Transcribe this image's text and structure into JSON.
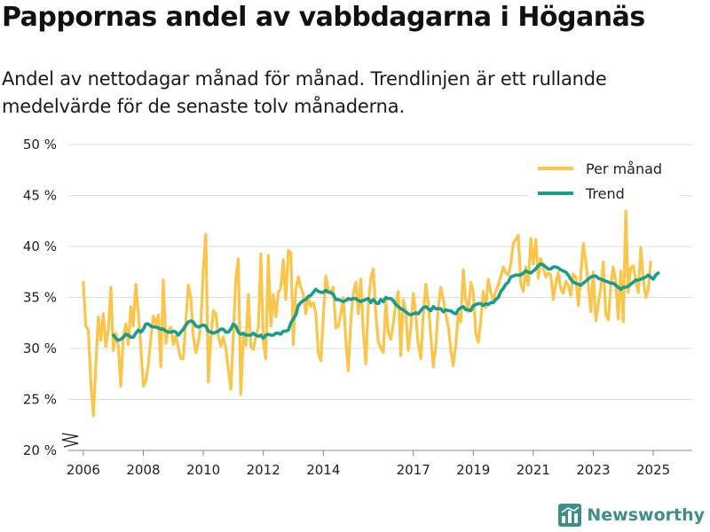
{
  "title": "Pappornas andel av vabbdagarna i Höganäs",
  "subtitle": "Andel av nettodagar månad för månad. Trendlinjen är ett rullande medelvärde för de senaste tolv månaderna.",
  "brand": "Newsworthy",
  "colors": {
    "monthly": "#fbc54a",
    "trend": "#179c8e",
    "grid": "#dddddd",
    "brand": "#3d8f88"
  },
  "chart_data": {
    "type": "line",
    "x_tick_labels": [
      "2006",
      "2008",
      "2010",
      "2012",
      "2014",
      "2017",
      "2019",
      "2021",
      "2023",
      "2025"
    ],
    "y_tick_labels": [
      "20 %",
      "25 %",
      "30 %",
      "35 %",
      "40 %",
      "45 %",
      "50 %"
    ],
    "y_ticks": [
      20,
      25,
      30,
      35,
      40,
      45,
      50
    ],
    "ylim": [
      20,
      50
    ],
    "legend": {
      "placement": "top-right",
      "labels": [
        "Per månad",
        "Trend"
      ]
    },
    "series": [
      {
        "name": "Per månad",
        "start": "2006-01",
        "values": [
          36.5,
          32.2,
          31.8,
          26.8,
          23.4,
          28.5,
          33.1,
          30.8,
          33.4,
          30.2,
          31.8,
          36.0,
          29.8,
          31.5,
          30.2,
          26.3,
          31.2,
          32.4,
          30.4,
          34.1,
          32.2,
          36.3,
          33.4,
          30.1,
          26.3,
          26.8,
          28.4,
          31.0,
          33.2,
          32.4,
          33.3,
          28.2,
          36.7,
          30.5,
          31.8,
          32.1,
          30.4,
          31.2,
          30.1,
          29.0,
          29.0,
          32.7,
          36.2,
          35.0,
          31.2,
          29.6,
          30.6,
          32.4,
          37.8,
          41.2,
          26.7,
          31.0,
          33.7,
          33.4,
          31.2,
          30.2,
          31.1,
          30.1,
          27.9,
          26.0,
          31.3,
          36.8,
          38.8,
          25.5,
          31.2,
          30.3,
          35.3,
          30.2,
          29.9,
          31.1,
          32.1,
          39.3,
          30.7,
          29.0,
          39.1,
          32.2,
          35.3,
          33.1,
          35.5,
          35.9,
          38.7,
          34.8,
          39.6,
          39.4,
          30.4,
          35.8,
          37.0,
          36.0,
          35.3,
          33.4,
          35.2,
          34.1,
          34.5,
          33.5,
          29.6,
          28.8,
          33.2,
          37.1,
          35.8,
          35.4,
          36.0,
          32.0,
          32.2,
          33.4,
          35.0,
          30.9,
          27.8,
          32.8,
          35.4,
          36.5,
          33.4,
          36.8,
          31.6,
          28.5,
          34.3,
          36.9,
          37.8,
          33.4,
          30.7,
          30.0,
          29.6,
          34.7,
          31.6,
          30.9,
          32.4,
          34.4,
          35.6,
          29.3,
          34.8,
          33.6,
          29.8,
          32.0,
          35.4,
          33.3,
          30.4,
          29.0,
          33.3,
          36.3,
          34.4,
          31.2,
          28.2,
          30.2,
          34.0,
          36.0,
          34.8,
          33.3,
          32.2,
          29.9,
          28.3,
          30.5,
          33.4,
          32.6,
          37.7,
          34.7,
          33.6,
          36.5,
          35.5,
          31.5,
          30.6,
          32.7,
          35.6,
          34.0,
          36.8,
          35.5,
          34.6,
          35.6,
          36.2,
          37.1,
          38.0,
          37.4,
          37.2,
          38.3,
          40.3,
          40.7,
          41.1,
          36.3,
          35.6,
          38.0,
          36.2,
          40.8,
          38.3,
          40.7,
          36.9,
          38.8,
          37.9,
          37.0,
          37.4,
          37.2,
          34.8,
          36.4,
          37.5,
          35.8,
          35.4,
          36.6,
          36.2,
          35.2,
          37.3,
          37.0,
          34.2,
          37.2,
          40.3,
          38.5,
          36.4,
          33.6,
          37.5,
          32.7,
          34.4,
          35.9,
          38.5,
          33.4,
          32.8,
          36.2,
          38.0,
          36.6,
          32.9,
          37.6,
          32.6,
          43.5,
          35.5,
          37.9,
          38.1,
          36.6,
          35.5,
          39.9,
          36.9,
          35.0,
          35.7,
          38.5
        ]
      },
      {
        "name": "Trend",
        "start": "2007-01",
        "values": [
          31.3,
          31.0,
          30.8,
          30.9,
          31.1,
          31.4,
          31.3,
          31.1,
          31.1,
          31.5,
          31.8,
          31.6,
          31.9,
          32.4,
          32.4,
          32.2,
          32.1,
          32.1,
          32.0,
          31.9,
          31.9,
          31.7,
          31.6,
          31.6,
          31.7,
          31.6,
          31.3,
          31.6,
          31.9,
          32.3,
          32.6,
          32.7,
          32.6,
          32.2,
          32.1,
          32.2,
          32.3,
          32.2,
          31.7,
          31.6,
          31.5,
          31.6,
          31.7,
          31.9,
          31.9,
          31.6,
          31.6,
          31.9,
          32.4,
          32.2,
          31.6,
          31.4,
          31.5,
          31.3,
          31.3,
          31.3,
          31.5,
          31.3,
          31.2,
          31.3,
          31.0,
          31.3,
          31.4,
          31.3,
          31.3,
          31.5,
          31.5,
          31.4,
          31.7,
          31.7,
          31.8,
          32.5,
          32.9,
          33.3,
          34.2,
          34.5,
          34.7,
          34.8,
          35.1,
          35.2,
          35.5,
          35.8,
          35.6,
          35.5,
          35.5,
          35.7,
          35.5,
          35.5,
          35.3,
          34.8,
          34.8,
          34.7,
          34.6,
          34.7,
          34.9,
          34.8,
          34.9,
          34.9,
          34.7,
          34.6,
          34.7,
          34.8,
          34.9,
          34.5,
          34.8,
          34.5,
          34.4,
          34.8,
          34.6,
          35.0,
          34.9,
          34.9,
          34.7,
          34.3,
          34.1,
          33.9,
          33.8,
          33.6,
          33.4,
          33.3,
          33.4,
          33.5,
          33.4,
          33.7,
          34.0,
          34.1,
          33.9,
          33.7,
          34.1,
          33.9,
          33.9,
          33.9,
          33.6,
          33.8,
          33.7,
          33.7,
          33.5,
          33.4,
          33.8,
          34.0,
          34.1,
          33.8,
          33.8,
          33.7,
          34.2,
          34.3,
          34.4,
          34.4,
          34.2,
          34.4,
          34.3,
          34.5,
          34.5,
          34.8,
          35.0,
          35.6,
          35.9,
          36.3,
          36.5,
          37.0,
          37.1,
          37.2,
          37.2,
          37.2,
          37.4,
          37.6,
          37.5,
          37.4,
          37.6,
          37.8,
          38.1,
          38.3,
          38.2,
          38.0,
          37.8,
          37.8,
          38.0,
          38.0,
          37.9,
          37.7,
          37.6,
          37.5,
          37.2,
          36.8,
          36.5,
          36.4,
          36.3,
          36.2,
          36.4,
          36.6,
          36.8,
          37.0,
          37.1,
          37.1,
          36.9,
          36.8,
          36.7,
          36.6,
          36.5,
          36.4,
          36.4,
          36.2,
          36.0,
          35.8,
          36.0,
          36.0,
          36.1,
          36.3,
          36.5,
          36.7,
          36.7,
          36.8,
          36.9,
          37.0,
          37.2,
          37.0,
          36.8,
          37.2,
          37.4
        ]
      }
    ]
  }
}
